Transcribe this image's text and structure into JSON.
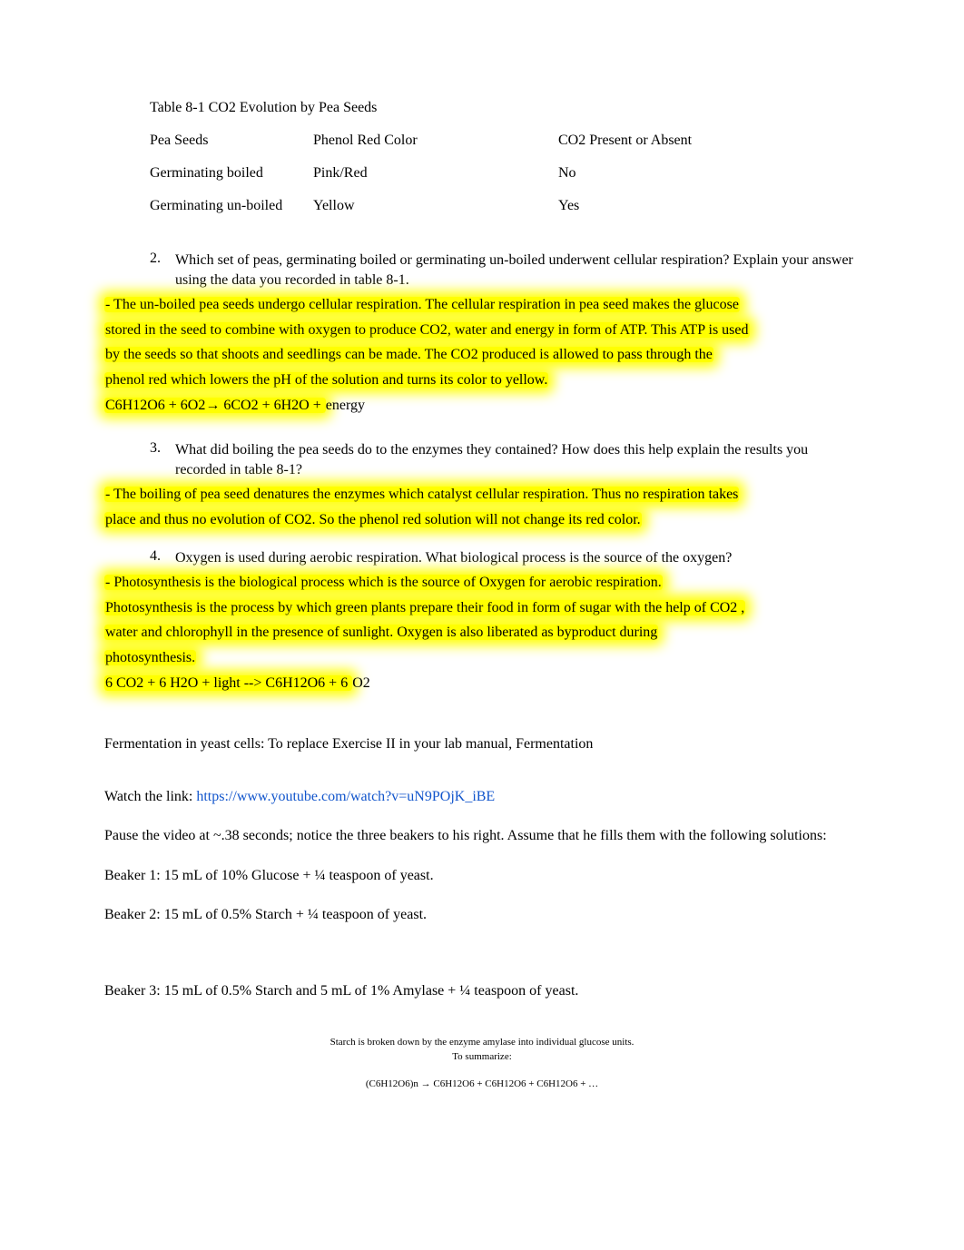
{
  "table": {
    "title": "Table 8-1 CO2 Evolution by Pea Seeds",
    "headers": {
      "c1": "Pea Seeds",
      "c2": "Phenol Red Color",
      "c3": "CO2 Present or Absent"
    },
    "rows": [
      {
        "c1": "Germinating boiled",
        "c2": "Pink/Red",
        "c3": "No"
      },
      {
        "c1": "Germinating un-boiled",
        "c2": "Yellow",
        "c3": "Yes"
      }
    ]
  },
  "q2": {
    "num": "2.",
    "text": "Which set of peas, germinating boiled or germinating un-boiled underwent cellular respiration? Explain your answer using the data you recorded in table 8-1.",
    "ans_lines": [
      "- The un-boiled pea seeds undergo cellular respiration. The cellular respiration in pea seed makes the glucose",
      "stored in the seed to combine with oxygen to produce CO2, water and energy in form of ATP. This ATP is used",
      "by the seeds so that shoots and seedlings can be made. The CO2 produced is allowed to pass through the",
      "phenol red which lowers the pH of the solution and turns its color to yellow."
    ],
    "eq_pre": "C6H12O6 + 6O2→ 6CO2 + 6H2O + ",
    "eq_tail": "energy"
  },
  "q3": {
    "num": "3.",
    "text": "What did boiling the pea seeds do to the enzymes they contained? How does this help explain the results you recorded in table 8-1?",
    "ans_lines": [
      "- The boiling of pea seed  denatures the enzymes which catalyst cellular respiration. Thus no respiration takes",
      "place and thus no evolution of CO2. So the phenol red solution will not change its red color."
    ]
  },
  "q4": {
    "num": "4.",
    "text": "Oxygen is used during aerobic respiration. What biological process is the source of the oxygen?",
    "ans_lines": [
      "- Photosynthesis is the biological process which is the source of Oxygen for aerobic respiration.",
      "Photosynthesis is the process by which green plants prepare their food in form of sugar with the help of CO2 ,",
      "water and chlorophyll in the presence of sunlight. Oxygen is also liberated as byproduct during",
      "photosynthesis."
    ],
    "eq_pre": "6 CO2 + 6 H2O + light --> C6H12O6 + 6 ",
    "eq_tail": "O2"
  },
  "section2": {
    "intro": "Fermentation in yeast cells: To replace Exercise II in your lab manual, Fermentation",
    "watch_label": "Watch the link: ",
    "watch_url": "https://www.youtube.com/watch?v=uN9POjK_iBE",
    "pause_text": "Pause the video at ~.38 seconds; notice the three beakers to his right. Assume that he fills them with the following solutions:",
    "beaker1": "Beaker 1: 15 mL of 10% Glucose + ¼ teaspoon of yeast.",
    "beaker2": "Beaker 2: 15 mL of 0.5% Starch + ¼ teaspoon of yeast.",
    "beaker3": "Beaker 3: 15 mL of 0.5% Starch and 5 mL of 1% Amylase + ¼ teaspoon of yeast."
  },
  "footer": {
    "line1": "Starch is broken down by the enzyme amylase into individual glucose units.",
    "line2": "To summarize:",
    "line3": "(C6H12O6)n    →     C6H12O6 + C6H12O6 + C6H12O6          +   …"
  }
}
